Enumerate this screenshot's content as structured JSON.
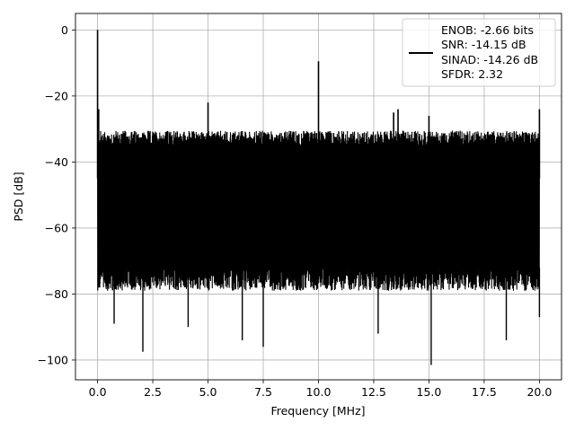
{
  "chart_data": {
    "type": "line",
    "xlabel": "Frequency [MHz]",
    "ylabel": "PSD [dB]",
    "xlim": [
      -1.0,
      21.0
    ],
    "ylim": [
      -106,
      5
    ],
    "x_ticks": [
      0.0,
      2.5,
      5.0,
      7.5,
      10.0,
      12.5,
      15.0,
      17.5,
      20.0
    ],
    "x_tick_labels": [
      "0.0",
      "2.5",
      "5.0",
      "7.5",
      "10.0",
      "12.5",
      "15.0",
      "17.5",
      "20.0"
    ],
    "y_ticks": [
      0,
      -20,
      -40,
      -60,
      -80,
      -100
    ],
    "y_tick_labels": [
      "0",
      "−20",
      "−40",
      "−60",
      "−80",
      "−100"
    ],
    "grid": true,
    "legend_position": "top-right",
    "line_color": "#000000",
    "series": [
      {
        "name": "",
        "legend_lines": [
          "ENOB: -2.66 bits",
          "SNR: -14.15 dB",
          "SINAD: -14.26 dB",
          "SFDR: 2.32"
        ],
        "noise_band": {
          "x_start": 0.0,
          "x_end": 20.0,
          "upper_db": -34,
          "lower_db": -72
        },
        "peaks": [
          {
            "x": 0.0,
            "y": 0
          },
          {
            "x": 0.05,
            "y": -24
          },
          {
            "x": 5.0,
            "y": -22
          },
          {
            "x": 10.0,
            "y": -9.5
          },
          {
            "x": 13.4,
            "y": -25
          },
          {
            "x": 13.6,
            "y": -24
          },
          {
            "x": 15.0,
            "y": -26
          },
          {
            "x": 20.0,
            "y": -24
          }
        ],
        "dips": [
          {
            "x": 0.1,
            "y": -77
          },
          {
            "x": 0.75,
            "y": -89
          },
          {
            "x": 2.05,
            "y": -97.5
          },
          {
            "x": 4.1,
            "y": -90
          },
          {
            "x": 6.55,
            "y": -94
          },
          {
            "x": 7.5,
            "y": -96
          },
          {
            "x": 12.7,
            "y": -92
          },
          {
            "x": 15.1,
            "y": -101.5
          },
          {
            "x": 18.5,
            "y": -94
          },
          {
            "x": 20.0,
            "y": -87
          }
        ]
      }
    ]
  }
}
